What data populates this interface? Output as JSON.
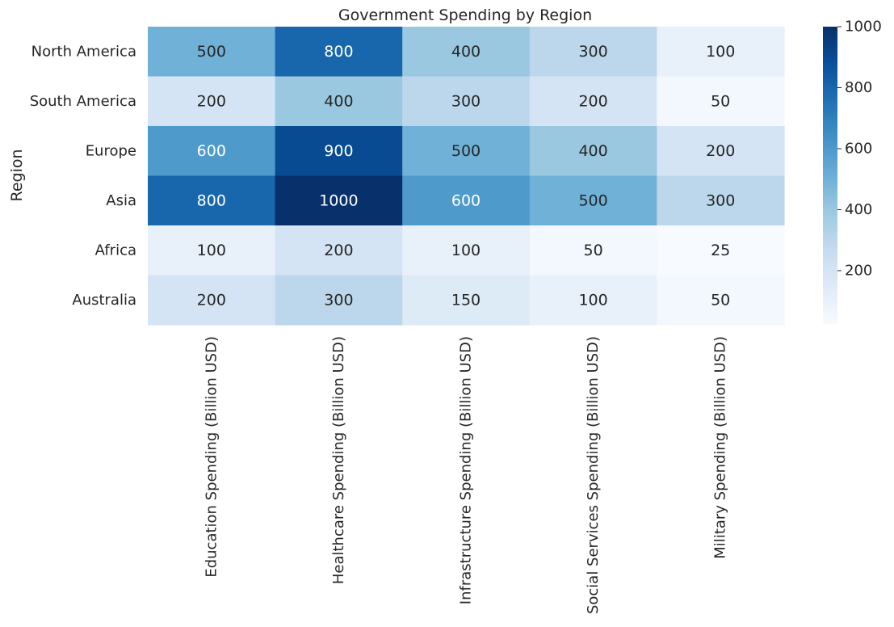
{
  "chart_data": {
    "type": "heatmap",
    "title": "Government Spending by Region",
    "xlabel": "",
    "ylabel": "Region",
    "rows": [
      "North America",
      "South America",
      "Europe",
      "Asia",
      "Africa",
      "Australia"
    ],
    "columns": [
      "Education Spending (Billion USD)",
      "Healthcare Spending (Billion USD)",
      "Infrastructure Spending (Billion USD)",
      "Social Services Spending (Billion USD)",
      "Military Spending (Billion USD)"
    ],
    "values": [
      [
        500,
        800,
        400,
        300,
        100
      ],
      [
        200,
        400,
        300,
        200,
        50
      ],
      [
        600,
        900,
        500,
        400,
        200
      ],
      [
        800,
        1000,
        600,
        500,
        300
      ],
      [
        100,
        200,
        100,
        50,
        25
      ],
      [
        200,
        300,
        150,
        100,
        50
      ]
    ],
    "annotations": true,
    "colormap": "Blues",
    "vmin": 25,
    "vmax": 1000,
    "colorbar": {
      "ticks": [
        200,
        400,
        600,
        800,
        1000
      ]
    }
  }
}
